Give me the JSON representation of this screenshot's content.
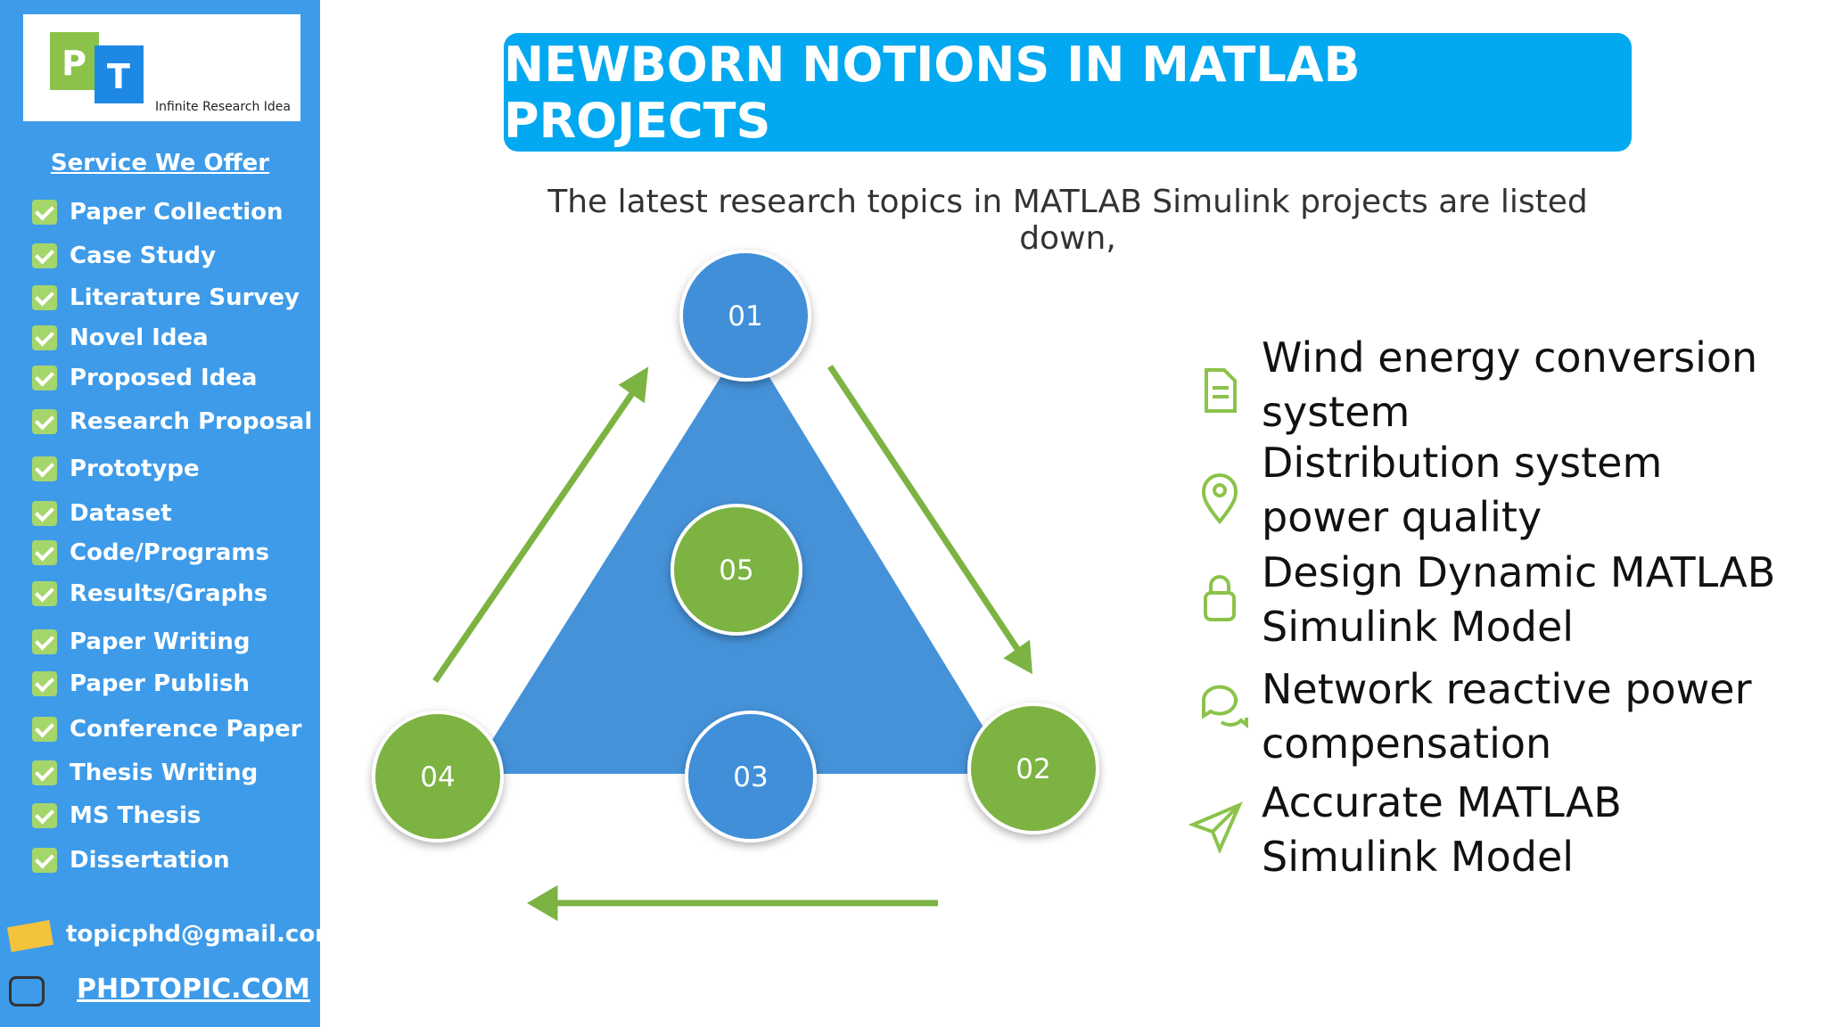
{
  "sidebar": {
    "logo_letters": [
      "P",
      "T"
    ],
    "logo_tagline": "Infinite Research Idea",
    "heading": "Service We Offer",
    "services": [
      "Paper Collection",
      "Case Study",
      "Literature Survey",
      "Novel Idea",
      "Proposed Idea",
      "Research Proposal",
      "Prototype",
      "Dataset",
      "Code/Programs",
      "Results/Graphs",
      "Paper Writing",
      "Paper Publish",
      "Conference Paper",
      "Thesis Writing",
      "MS Thesis",
      "Dissertation"
    ],
    "email": "topicphd@gmail.com",
    "website": "PHDTOPIC.COM"
  },
  "header": {
    "title": "NEWBORN NOTIONS IN MATLAB PROJECTS",
    "subtitle": "The latest research topics in MATLAB Simulink projects are listed down,"
  },
  "diagram": {
    "nodes": [
      "01",
      "02",
      "03",
      "04",
      "05"
    ]
  },
  "topics": [
    "Wind energy conversion system",
    "Distribution system power quality",
    "Design Dynamic MATLAB Simulink Model",
    "Network reactive power compensation",
    "Accurate MATLAB Simulink Model"
  ]
}
